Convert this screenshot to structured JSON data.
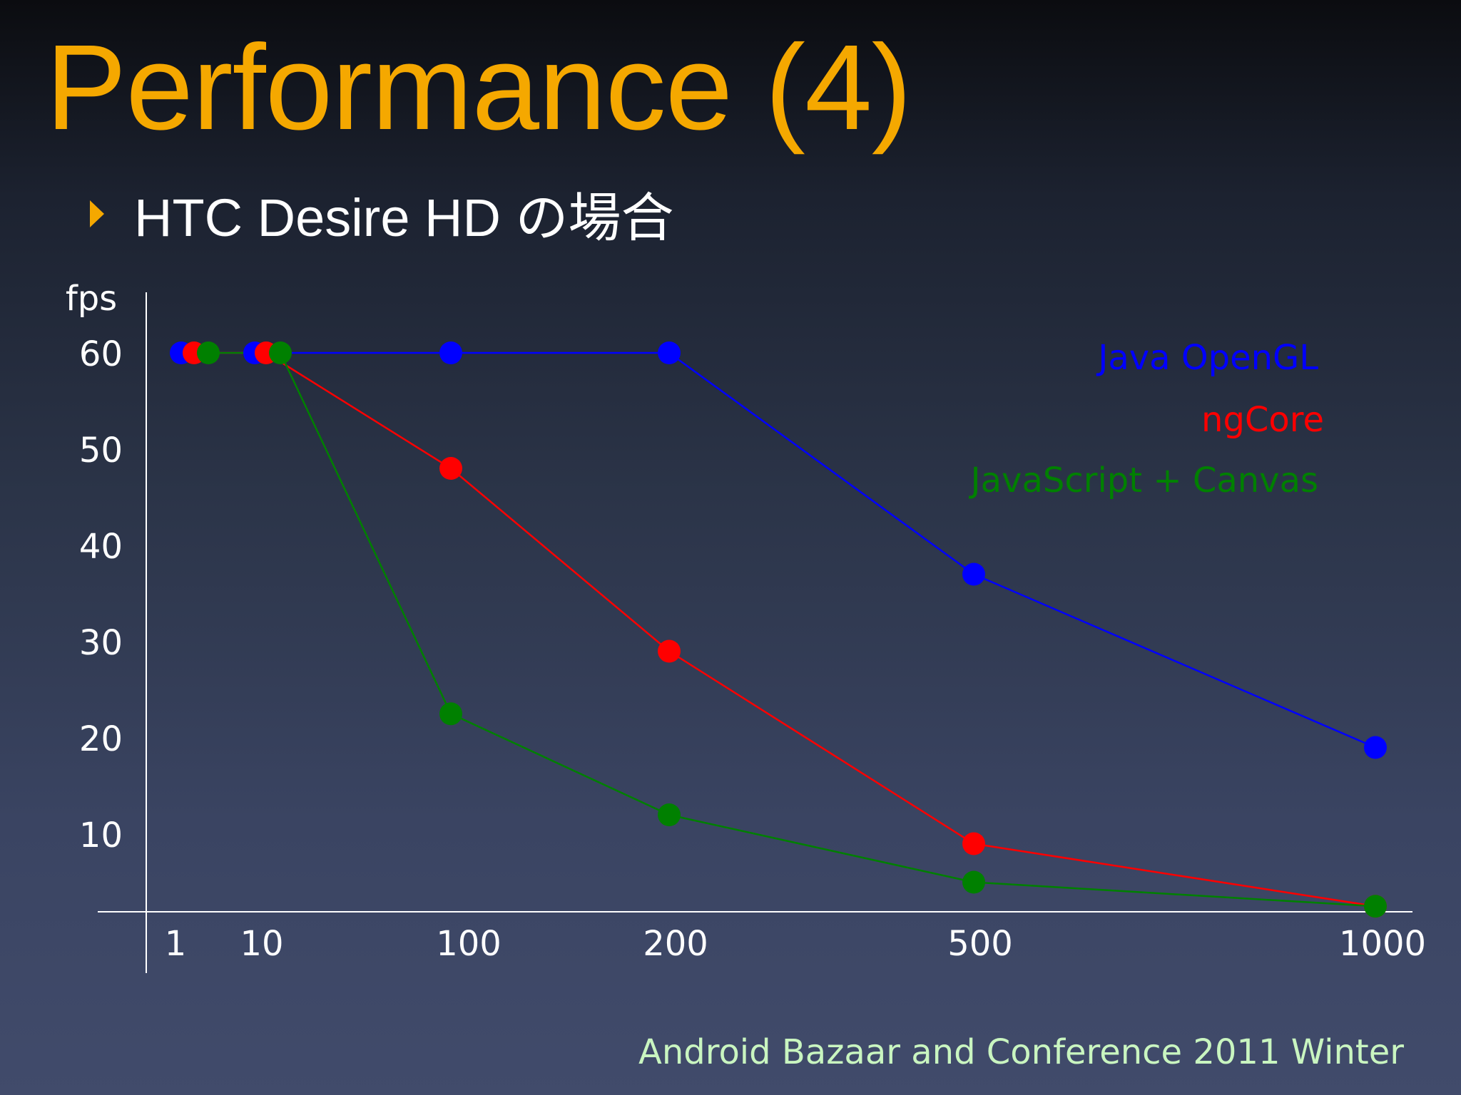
{
  "slide": {
    "title": "Performance (4)",
    "bullet": "HTC Desire HD の場合",
    "footer": "Android Bazaar and Conference 2011 Winter"
  },
  "colors": {
    "title": "#f5a800",
    "bullet_marker": "#f5a800",
    "axis": "#ffffff",
    "footer": "#c9f5c0"
  },
  "chart_data": {
    "type": "line",
    "ylabel": "fps",
    "x": [
      1,
      10,
      100,
      200,
      500,
      1000
    ],
    "xticks": [
      "1",
      "10",
      "100",
      "200",
      "500",
      "1000"
    ],
    "yticks": [
      10,
      20,
      30,
      40,
      50,
      60
    ],
    "ylim": [
      0,
      62
    ],
    "grid": false,
    "legend_position": "top-right",
    "series": [
      {
        "name": "Java OpenGL",
        "color": "#0000ff",
        "values": [
          60,
          60,
          60,
          60,
          37,
          19
        ]
      },
      {
        "name": "ngCore",
        "color": "#ff0000",
        "values": [
          60,
          60,
          48,
          29,
          9,
          2.5
        ]
      },
      {
        "name": "JavaScript + Canvas",
        "color": "#008000",
        "values": [
          60,
          60,
          22.5,
          12,
          5,
          2.5
        ]
      }
    ]
  }
}
